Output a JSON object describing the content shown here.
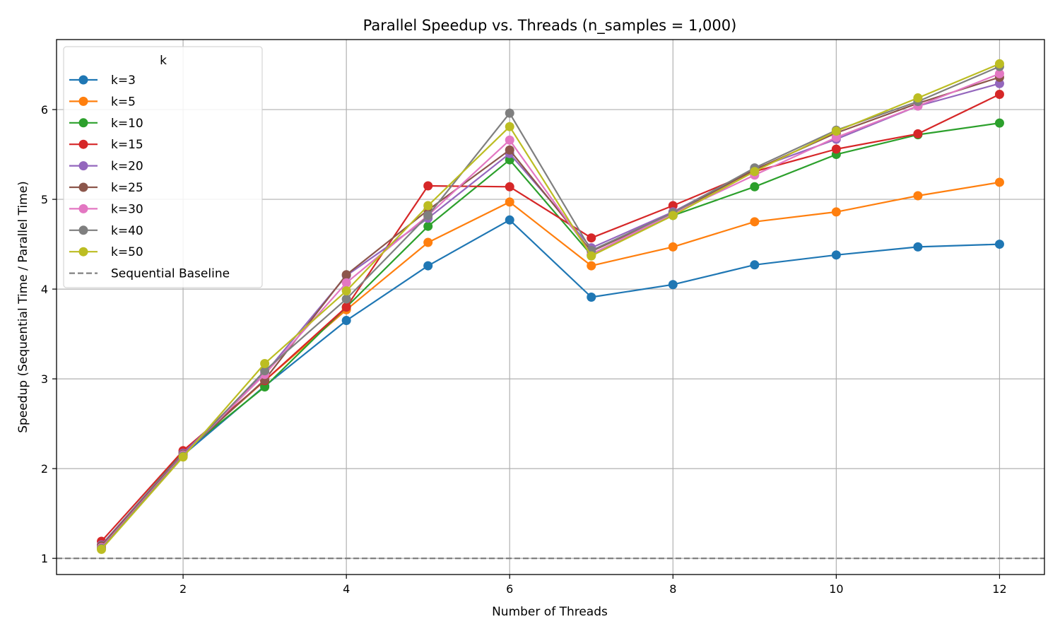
{
  "chart_data": {
    "type": "line",
    "title": "Parallel Speedup vs. Threads (n_samples = 1,000)",
    "xlabel": "Number of Threads",
    "ylabel": "Speedup (Sequential Time / Parallel Time)",
    "xlim": [
      0.45,
      12.55
    ],
    "ylim": [
      0.82,
      6.78
    ],
    "x_ticks": [
      2,
      4,
      6,
      8,
      10,
      12
    ],
    "y_ticks": [
      1,
      2,
      3,
      4,
      5,
      6
    ],
    "grid": true,
    "legend": {
      "title": "k",
      "placement": "top-left"
    },
    "x": [
      1,
      2,
      3,
      4,
      5,
      6,
      7,
      8,
      9,
      10,
      11,
      12
    ],
    "series": [
      {
        "name": "k=3",
        "color": "#1f77b4",
        "values": [
          1.12,
          2.15,
          2.92,
          3.65,
          4.26,
          4.77,
          3.91,
          4.05,
          4.27,
          4.38,
          4.47,
          4.5
        ]
      },
      {
        "name": "k=5",
        "color": "#ff7f0e",
        "values": [
          1.14,
          2.17,
          2.98,
          3.77,
          4.52,
          4.97,
          4.26,
          4.47,
          4.75,
          4.86,
          5.04,
          5.19
        ]
      },
      {
        "name": "k=10",
        "color": "#2ca02c",
        "values": [
          1.15,
          2.18,
          2.91,
          3.8,
          4.7,
          5.44,
          4.38,
          4.82,
          5.14,
          5.5,
          5.72,
          5.85
        ]
      },
      {
        "name": "k=15",
        "color": "#d62728",
        "values": [
          1.19,
          2.2,
          2.98,
          3.8,
          5.15,
          5.14,
          4.57,
          4.93,
          5.31,
          5.56,
          5.73,
          6.17
        ]
      },
      {
        "name": "k=20",
        "color": "#9467bd",
        "values": [
          1.15,
          2.17,
          3.06,
          4.15,
          4.79,
          5.51,
          4.46,
          4.86,
          5.34,
          5.67,
          6.04,
          6.29
        ]
      },
      {
        "name": "k=25",
        "color": "#8c564b",
        "values": [
          1.14,
          2.16,
          2.99,
          4.16,
          4.88,
          5.55,
          4.42,
          4.84,
          5.33,
          5.74,
          6.07,
          6.36
        ]
      },
      {
        "name": "k=30",
        "color": "#e377c2",
        "values": [
          1.12,
          2.15,
          3.05,
          4.07,
          4.82,
          5.66,
          4.39,
          4.84,
          5.27,
          5.69,
          6.04,
          6.4
        ]
      },
      {
        "name": "k=40",
        "color": "#7f7f7f",
        "values": [
          1.11,
          2.14,
          3.09,
          3.89,
          4.82,
          5.96,
          4.43,
          4.85,
          5.35,
          5.77,
          6.09,
          6.48
        ]
      },
      {
        "name": "k=50",
        "color": "#bcbd22",
        "values": [
          1.1,
          2.13,
          3.17,
          3.98,
          4.93,
          5.81,
          4.37,
          4.82,
          5.31,
          5.76,
          6.13,
          6.51
        ]
      }
    ],
    "baseline": {
      "name": "Sequential Baseline",
      "value": 1,
      "color": "#808080",
      "style": "dashed"
    }
  }
}
